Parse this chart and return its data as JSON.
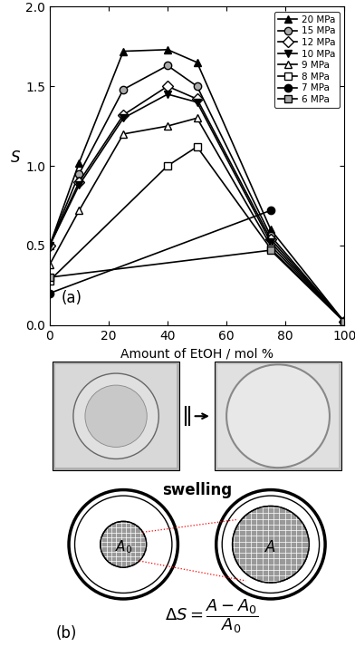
{
  "series": [
    {
      "label": "20 MPa",
      "x": [
        0,
        10,
        25,
        40,
        50,
        75,
        100
      ],
      "y": [
        0.5,
        1.02,
        1.72,
        1.73,
        1.65,
        0.6,
        0.02
      ],
      "marker": "^",
      "color": "#000000",
      "markerface": "#000000"
    },
    {
      "label": "15 MPa",
      "x": [
        0,
        10,
        25,
        40,
        50,
        75,
        100
      ],
      "y": [
        0.5,
        0.95,
        1.48,
        1.63,
        1.5,
        0.56,
        0.02
      ],
      "marker": "o",
      "color": "#000000",
      "markerface": "#aaaaaa"
    },
    {
      "label": "12 MPa",
      "x": [
        0,
        10,
        25,
        40,
        50,
        75,
        100
      ],
      "y": [
        0.5,
        0.9,
        1.32,
        1.5,
        1.42,
        0.54,
        0.02
      ],
      "marker": "D",
      "color": "#000000",
      "markerface": "#ffffff"
    },
    {
      "label": "10 MPa",
      "x": [
        0,
        10,
        25,
        40,
        50,
        75,
        100
      ],
      "y": [
        0.5,
        0.88,
        1.3,
        1.45,
        1.4,
        0.52,
        0.02
      ],
      "marker": "v",
      "color": "#000000",
      "markerface": "#000000"
    },
    {
      "label": "9 MPa",
      "x": [
        0,
        10,
        25,
        40,
        50,
        75,
        100
      ],
      "y": [
        0.38,
        0.72,
        1.2,
        1.25,
        1.3,
        0.5,
        0.02
      ],
      "marker": "^",
      "color": "#000000",
      "markerface": "#ffffff"
    },
    {
      "label": "8 MPa",
      "x": [
        0,
        40,
        50,
        75,
        100
      ],
      "y": [
        0.28,
        1.0,
        1.12,
        0.48,
        0.02
      ],
      "marker": "s",
      "color": "#000000",
      "markerface": "#ffffff"
    },
    {
      "label": "7 MPa",
      "x": [
        0,
        75
      ],
      "y": [
        0.2,
        0.72
      ],
      "marker": "o",
      "color": "#000000",
      "markerface": "#000000"
    },
    {
      "label": "6 MPa",
      "x": [
        0,
        75,
        100
      ],
      "y": [
        0.3,
        0.47,
        0.02
      ],
      "marker": "s",
      "color": "#000000",
      "markerface": "#aaaaaa"
    }
  ],
  "xlabel": "Amount of EtOH / mol %",
  "ylabel": "S",
  "xlim": [
    0,
    100
  ],
  "ylim": [
    0.0,
    2.0
  ],
  "xticks": [
    0,
    20,
    40,
    60,
    80,
    100
  ],
  "yticks": [
    0.0,
    0.5,
    1.0,
    1.5,
    2.0
  ],
  "panel_label_a": "(a)",
  "panel_label_b": "(b)"
}
